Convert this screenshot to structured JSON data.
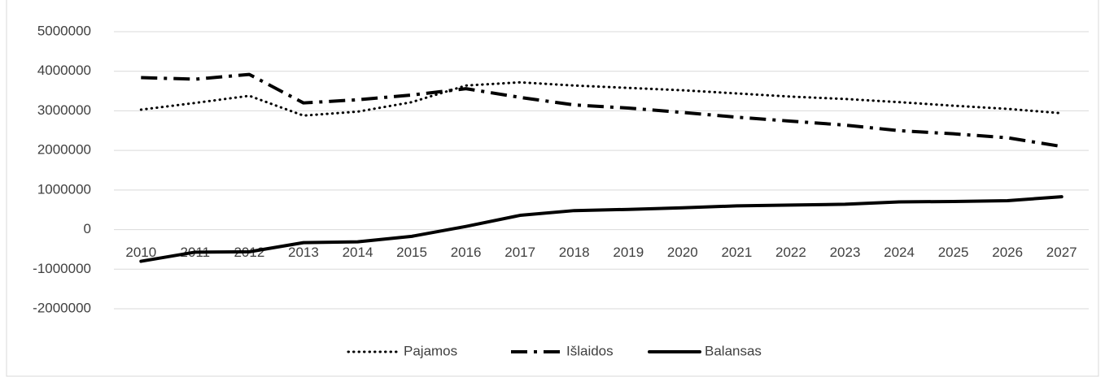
{
  "chart_data": {
    "type": "line",
    "categories": [
      "2010",
      "2011",
      "2012",
      "2013",
      "2014",
      "2015",
      "2016",
      "2017",
      "2018",
      "2019",
      "2020",
      "2021",
      "2022",
      "2023",
      "2024",
      "2025",
      "2026",
      "2027"
    ],
    "series": [
      {
        "name": "Pajamos",
        "color": "#000000",
        "dash": "dot",
        "values": [
          3030000,
          3200000,
          3380000,
          2880000,
          2980000,
          3220000,
          3640000,
          3720000,
          3640000,
          3580000,
          3520000,
          3440000,
          3360000,
          3300000,
          3220000,
          3130000,
          3050000,
          2940000
        ]
      },
      {
        "name": "Išlaidos",
        "color": "#000000",
        "dash": "dash-dot",
        "values": [
          3840000,
          3800000,
          3920000,
          3200000,
          3280000,
          3400000,
          3560000,
          3340000,
          3150000,
          3070000,
          2960000,
          2840000,
          2740000,
          2640000,
          2500000,
          2420000,
          2320000,
          2100000
        ]
      },
      {
        "name": "Balansas",
        "color": "#000000",
        "dash": "solid",
        "values": [
          -800000,
          -570000,
          -560000,
          -330000,
          -310000,
          -170000,
          80000,
          360000,
          480000,
          510000,
          550000,
          600000,
          620000,
          640000,
          700000,
          710000,
          730000,
          830000
        ]
      }
    ],
    "ylim": [
      -2000000,
      5000000
    ],
    "yticks": [
      -2000000,
      -1000000,
      0,
      1000000,
      2000000,
      3000000,
      4000000,
      5000000
    ],
    "grid": true,
    "legend": "bottom"
  }
}
